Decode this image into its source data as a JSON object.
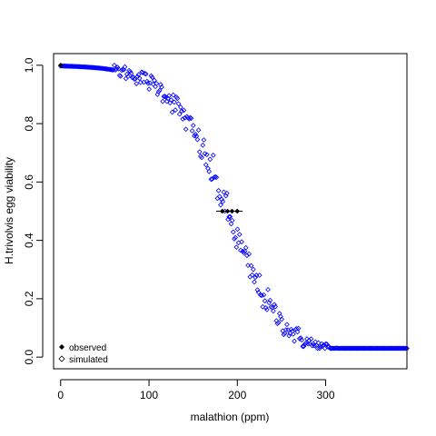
{
  "chart_data": {
    "type": "scatter",
    "xlabel": "malathion (ppm)",
    "ylabel": "H.trivolvis egg viability",
    "xlim": [
      -8,
      392
    ],
    "ylim": [
      -0.04,
      1.04
    ],
    "x_ticks": [
      0,
      100,
      200,
      300
    ],
    "x_tick_labels": [
      "0",
      "100",
      "200",
      "300"
    ],
    "y_ticks": [
      0.0,
      0.2,
      0.4,
      0.6,
      0.8,
      1.0
    ],
    "y_tick_labels": [
      "0.0",
      "0.2",
      "0.4",
      "0.6",
      "0.8",
      "1.0"
    ],
    "grid": false,
    "legend": {
      "position": "bottom-left",
      "entries": [
        {
          "label": "observed",
          "marker": "filled-diamond"
        },
        {
          "label": "simulated",
          "marker": "open-diamond"
        }
      ]
    },
    "series": [
      {
        "marker": "filled-diamond",
        "color": "#000000",
        "points": [
          [
            0,
            1.0
          ],
          [
            183,
            0.5
          ],
          [
            189,
            0.5
          ],
          [
            194,
            0.5
          ],
          [
            200,
            0.5
          ]
        ]
      },
      {
        "marker": "open-diamond",
        "color": "#0000ff",
        "curve": {
          "model": "logistic",
          "ec50": 188,
          "slope": 0.032,
          "x_from": 0,
          "x_to": 392,
          "n_points": 330,
          "jitter_sd": 0.03
        }
      }
    ]
  }
}
